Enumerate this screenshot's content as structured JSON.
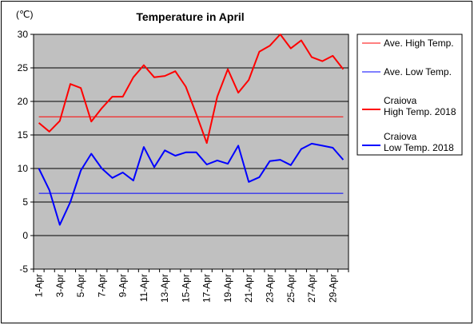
{
  "chart_data": {
    "type": "line",
    "title": "Temperature in April",
    "unit_label": "(℃)",
    "ylim": [
      -5,
      30
    ],
    "y_ticks": [
      -5,
      0,
      5,
      10,
      15,
      20,
      25,
      30
    ],
    "grid": true,
    "legend_position": "right",
    "x_tick_labels": [
      "1-Apr",
      "3-Apr",
      "5-Apr",
      "7-Apr",
      "9-Apr",
      "11-Apr",
      "13-Apr",
      "15-Apr",
      "17-Apr",
      "19-Apr",
      "21-Apr",
      "23-Apr",
      "25-Apr",
      "27-Apr",
      "29-Apr"
    ],
    "days": [
      1,
      2,
      3,
      4,
      5,
      6,
      7,
      8,
      9,
      10,
      11,
      12,
      13,
      14,
      15,
      16,
      17,
      18,
      19,
      20,
      21,
      22,
      23,
      24,
      25,
      26,
      27,
      28,
      29,
      30
    ],
    "series": [
      {
        "name": "Ave. High Temp.",
        "color": "#ff0000",
        "width": 1,
        "values": [
          17.7,
          17.7,
          17.7,
          17.7,
          17.7,
          17.7,
          17.7,
          17.7,
          17.7,
          17.7,
          17.7,
          17.7,
          17.7,
          17.7,
          17.7,
          17.7,
          17.7,
          17.7,
          17.7,
          17.7,
          17.7,
          17.7,
          17.7,
          17.7,
          17.7,
          17.7,
          17.7,
          17.7,
          17.7,
          17.7
        ]
      },
      {
        "name": "Ave. Low Temp.",
        "color": "#0000ff",
        "width": 1,
        "values": [
          6.3,
          6.3,
          6.3,
          6.3,
          6.3,
          6.3,
          6.3,
          6.3,
          6.3,
          6.3,
          6.3,
          6.3,
          6.3,
          6.3,
          6.3,
          6.3,
          6.3,
          6.3,
          6.3,
          6.3,
          6.3,
          6.3,
          6.3,
          6.3,
          6.3,
          6.3,
          6.3,
          6.3,
          6.3,
          6.3
        ]
      },
      {
        "name": "Craiova\nHigh Temp. 2018",
        "color": "#ff0000",
        "width": 2,
        "values": [
          16.8,
          15.5,
          17.1,
          22.6,
          22.0,
          17.0,
          19.0,
          20.7,
          20.7,
          23.6,
          25.4,
          23.6,
          23.8,
          24.5,
          22.2,
          18.1,
          13.8,
          20.7,
          24.8,
          21.3,
          23.2,
          27.4,
          28.3,
          30.0,
          27.9,
          29.1,
          26.6,
          26.0,
          26.8,
          24.8
        ]
      },
      {
        "name": "Craiova\nLow Temp. 2018",
        "color": "#0000ff",
        "width": 2,
        "values": [
          10.0,
          6.8,
          1.6,
          5.0,
          9.7,
          12.2,
          10.0,
          8.6,
          9.4,
          8.2,
          13.2,
          10.2,
          12.7,
          11.9,
          12.4,
          12.4,
          10.6,
          11.2,
          10.7,
          13.4,
          8.0,
          8.7,
          11.1,
          11.3,
          10.5,
          12.9,
          13.7,
          13.4,
          13.1,
          11.3
        ]
      }
    ]
  }
}
